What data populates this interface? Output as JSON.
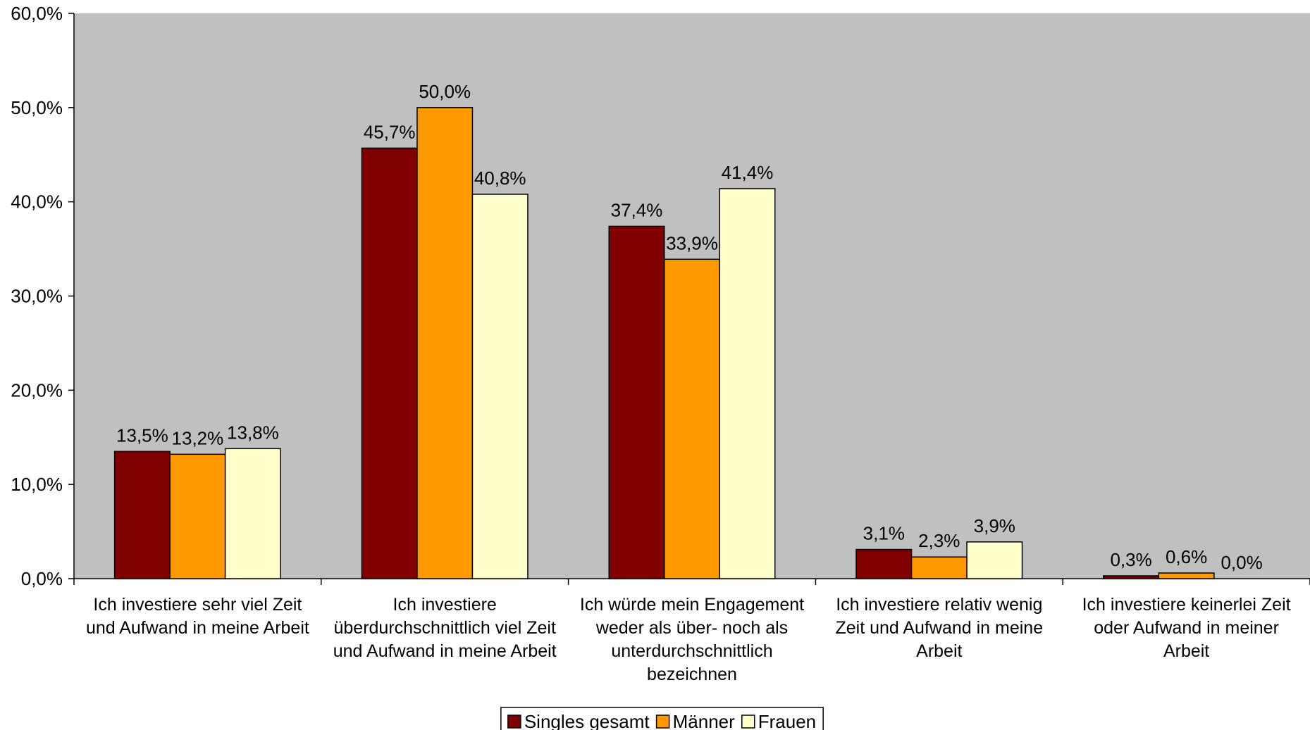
{
  "chart_data": {
    "type": "bar",
    "title": "",
    "xlabel": "",
    "ylabel": "",
    "ylim": [
      0,
      60
    ],
    "y_ticks": [
      0,
      10,
      20,
      30,
      40,
      50,
      60
    ],
    "y_tick_labels": [
      "0,0%",
      "10,0%",
      "20,0%",
      "30,0%",
      "40,0%",
      "50,0%",
      "60,0%"
    ],
    "grid": false,
    "plot_background": "#c0c0c0",
    "legend_position": "bottom",
    "categories": [
      [
        "Ich investiere sehr viel Zeit",
        "und Aufwand in meine Arbeit"
      ],
      [
        "Ich investiere",
        "überdurchschnittlich viel Zeit",
        "und Aufwand in meine Arbeit"
      ],
      [
        "Ich würde mein Engagement",
        "weder als über- noch als",
        "unterdurchschnittlich",
        "bezeichnen"
      ],
      [
        "Ich investiere relativ wenig",
        "Zeit und Aufwand in meine",
        "Arbeit"
      ],
      [
        "Ich investiere keinerlei Zeit",
        "oder Aufwand in meiner",
        "Arbeit"
      ]
    ],
    "series": [
      {
        "name": "Singles gesamt",
        "color": "#800000",
        "values": [
          13.5,
          45.7,
          37.4,
          3.1,
          0.3
        ],
        "labels": [
          "13,5%",
          "45,7%",
          "37,4%",
          "3,1%",
          "0,3%"
        ]
      },
      {
        "name": "Männer",
        "color": "#ff9900",
        "values": [
          13.2,
          50.0,
          33.9,
          2.3,
          0.6
        ],
        "labels": [
          "13,2%",
          "50,0%",
          "33,9%",
          "2,3%",
          "0,6%"
        ]
      },
      {
        "name": "Frauen",
        "color": "#ffffcc",
        "values": [
          13.8,
          40.8,
          41.4,
          3.9,
          0.0
        ],
        "labels": [
          "13,8%",
          "40,8%",
          "41,4%",
          "3,9%",
          "0,0%"
        ]
      }
    ]
  }
}
